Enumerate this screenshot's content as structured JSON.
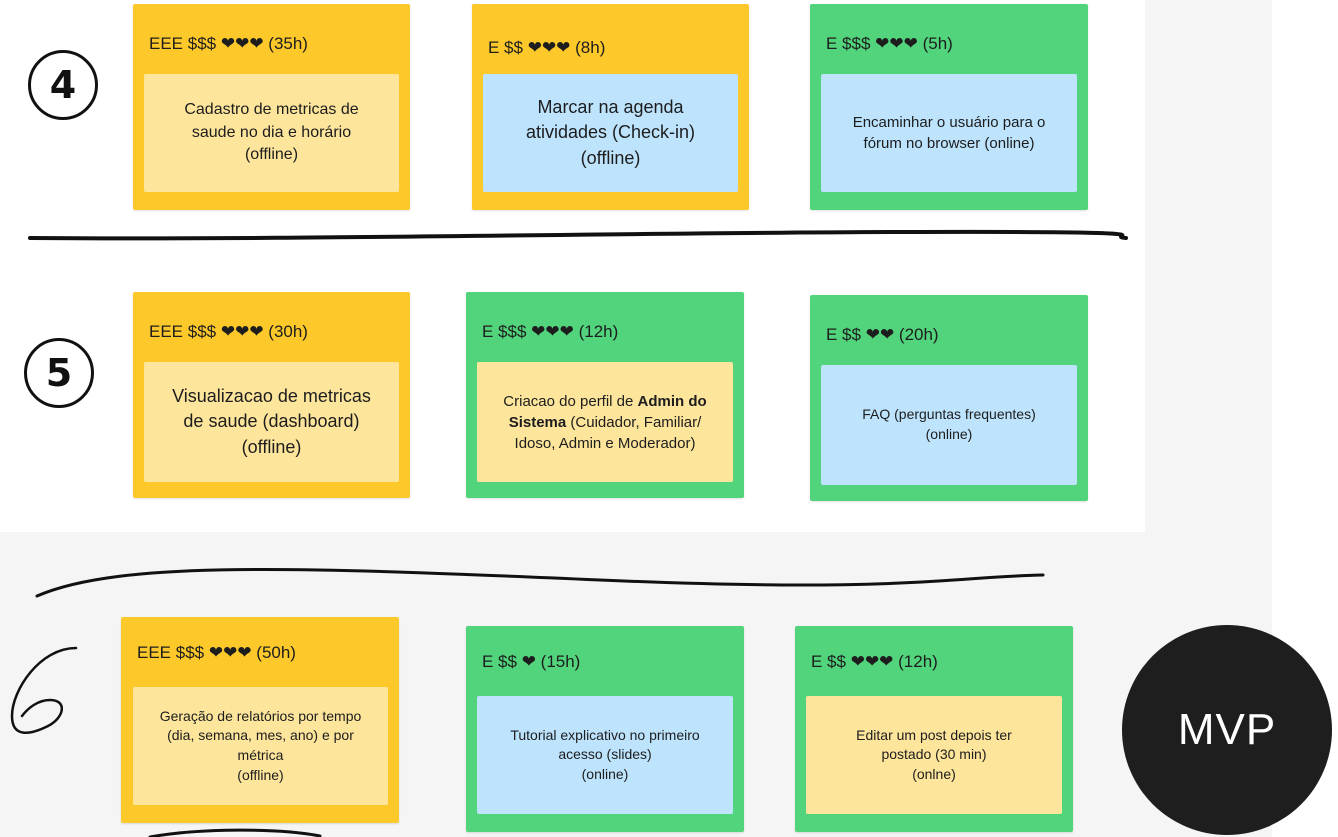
{
  "rows": [
    {
      "badge": "4",
      "cards": [
        {
          "header": "EEE $$$ ❤❤❤ (35h)",
          "lines": [
            "Cadastro de metricas de",
            "saude no dia e horário",
            "(offline)"
          ]
        },
        {
          "header": "E $$ ❤❤❤ (8h)",
          "lines": [
            "Marcar na agenda",
            "atividades (Check-in)",
            "(offline)"
          ]
        },
        {
          "header": "E $$$ ❤❤❤ (5h)",
          "lines": [
            "Encaminhar o usuário para o",
            "fórum no browser (online)"
          ]
        }
      ]
    },
    {
      "badge": "5",
      "cards": [
        {
          "header": "EEE $$$ ❤❤❤ (30h)",
          "lines": [
            "Visualizacao de metricas",
            "de saude (dashboard)",
            "(offline)"
          ]
        },
        {
          "header": "E $$$ ❤❤❤ (12h)",
          "line1_prefix": "Criacao do perfil de ",
          "line1_bold": "Admin do",
          "line2_bold": "Sistema",
          "line2_rest": " (Cuidador, Familiar/",
          "line3": "Idoso, Admin  e Moderador)"
        },
        {
          "header": "E $$ ❤❤ (20h)",
          "lines": [
            "FAQ (perguntas frequentes)",
            "(online)"
          ]
        }
      ]
    },
    {
      "badge": "6",
      "cards": [
        {
          "header": "EEE $$$ ❤❤❤ (50h)",
          "lines": [
            "Geração de relatórios por tempo",
            "(dia, semana, mes, ano) e por",
            "métrica",
            "(offline)"
          ]
        },
        {
          "header": "E $$ ❤ (15h)",
          "lines": [
            "Tutorial explicativo no primeiro",
            "acesso (slides)",
            "(online)"
          ]
        },
        {
          "header": "E $$ ❤❤❤ (12h)",
          "lines": [
            "Editar um post depois ter",
            "postado (30 min)",
            "(onlne)"
          ]
        }
      ]
    }
  ],
  "mvp_label": "MVP",
  "colors": {
    "yellow_card": "#fdc92a",
    "green_card": "#52d47d",
    "light_yellow_note": "#fde59c",
    "light_blue_note": "#bde3fd",
    "mvp_circle": "#1e1e1e"
  }
}
